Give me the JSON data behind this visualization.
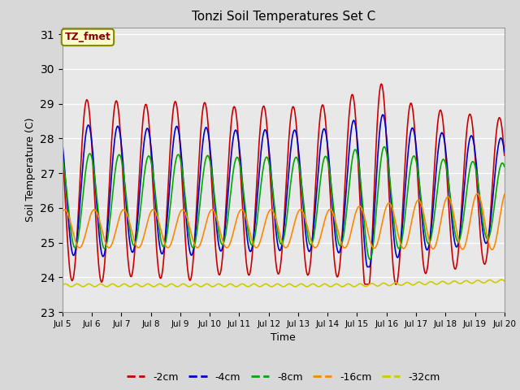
{
  "title": "Tonzi Soil Temperatures Set C",
  "xlabel": "Time",
  "ylabel": "Soil Temperature (C)",
  "ylim": [
    23.0,
    31.2
  ],
  "yticks": [
    23.0,
    24.0,
    25.0,
    26.0,
    27.0,
    28.0,
    29.0,
    30.0,
    31.0
  ],
  "x_start_day": 5,
  "x_end_day": 20,
  "xtick_days": [
    5,
    6,
    7,
    8,
    9,
    10,
    11,
    12,
    13,
    14,
    15,
    16,
    17,
    18,
    19,
    20
  ],
  "colors": {
    "-2cm": "#CC0000",
    "-4cm": "#0000CC",
    "-8cm": "#00AA00",
    "-16cm": "#FF8800",
    "-32cm": "#CCCC00"
  },
  "line_width": 1.2,
  "bg_color": "#D8D8D8",
  "plot_bg": "#E8E8E8",
  "annotation_text": "TZ_fmet",
  "annotation_bg": "#FFFFCC",
  "annotation_border": "#AAAA00",
  "legend_entries": [
    "-2cm",
    "-4cm",
    "-8cm",
    "-16cm",
    "-32cm"
  ]
}
